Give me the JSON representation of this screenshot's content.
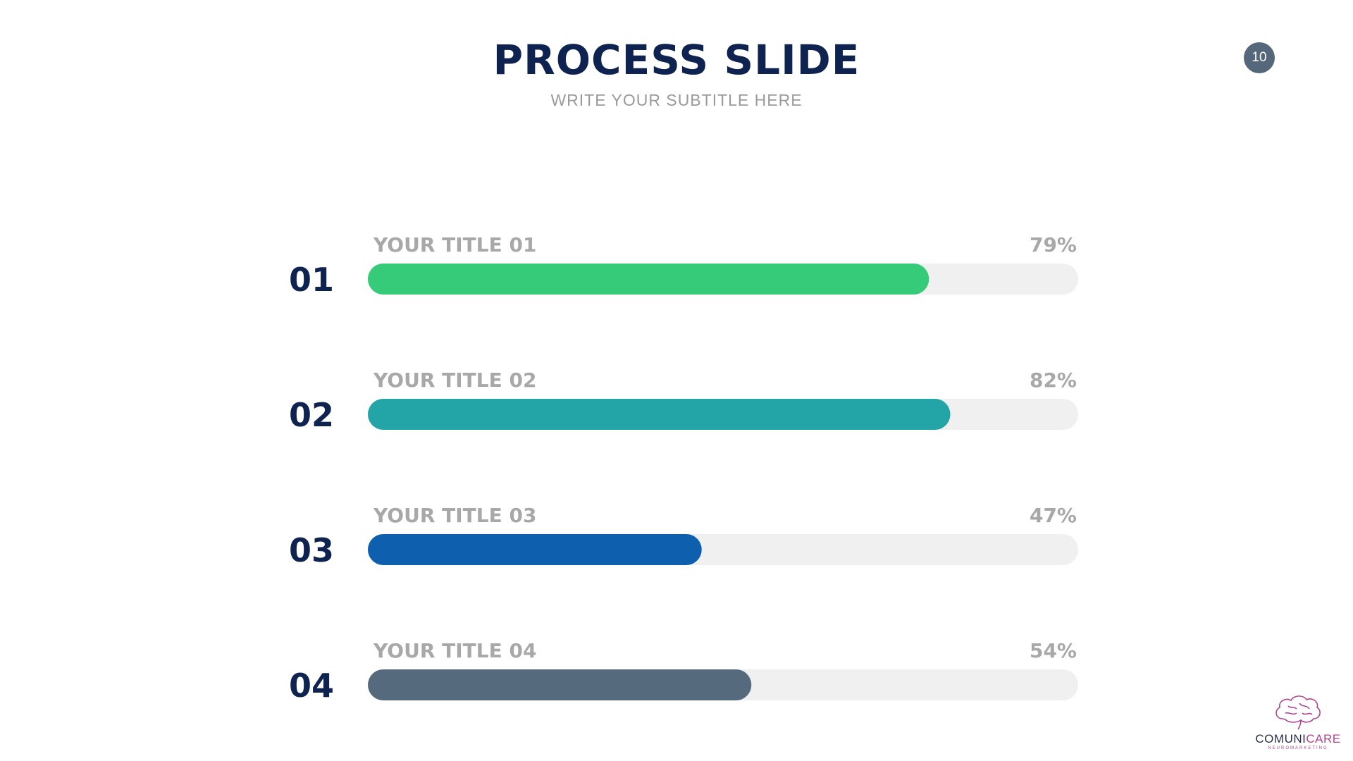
{
  "slide": {
    "title": "PROCESS SLIDE",
    "subtitle": "WRITE YOUR SUBTITLE HERE",
    "page_number": "10"
  },
  "logo": {
    "name_part1": "COMUNI",
    "name_part2": "CARE",
    "tagline": "NEUROMARKETING"
  },
  "colors": {
    "title": "#0f2350",
    "subtitle": "#9a9a9a",
    "page_badge": "#55677a",
    "label": "#a8a8a8",
    "step_number": "#0f2350",
    "track": "#f0f0f0",
    "logo_dark": "#2a2f4a",
    "logo_accent": "#b2458f"
  },
  "chart_data": {
    "type": "bar",
    "orientation": "horizontal",
    "xlim": [
      0,
      100
    ],
    "items": [
      {
        "number": "01",
        "label": "YOUR TITLE 01",
        "value": 79,
        "value_label": "79%",
        "color": "#35cb78"
      },
      {
        "number": "02",
        "label": "YOUR TITLE 02",
        "value": 82,
        "value_label": "82%",
        "color": "#23a5a7"
      },
      {
        "number": "03",
        "label": "YOUR TITLE 03",
        "value": 47,
        "value_label": "47%",
        "color": "#0f5faf"
      },
      {
        "number": "04",
        "label": "YOUR TITLE 04",
        "value": 54,
        "value_label": "54%",
        "color": "#566a7d"
      }
    ]
  }
}
